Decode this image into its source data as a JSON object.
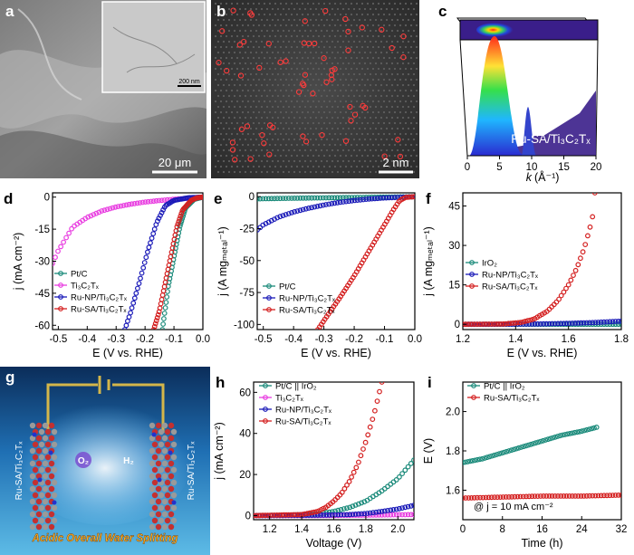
{
  "panels": {
    "a": {
      "label": "a",
      "scale_main": "20 μm",
      "scale_inset": "200 nm"
    },
    "b": {
      "label": "b",
      "scale": "2 nm"
    },
    "c": {
      "label": "c",
      "sample": "Ru-SA/Ti₃C₂Tₓ",
      "xlabel_k": "k",
      "xlabel_unit": "(Å⁻¹)",
      "xticks": [
        "0",
        "5",
        "10",
        "15",
        "20"
      ]
    },
    "d": {
      "label": "d",
      "ylabel": "j (mA cm⁻²)",
      "xlabel": "E (V vs. RHE)",
      "xticks": [
        "-0.5",
        "-0.4",
        "-0.3",
        "-0.2",
        "-0.1",
        "0.0"
      ],
      "yticks": [
        "0",
        "-15",
        "-30",
        "-45",
        "-60"
      ],
      "legend": [
        "Pt/C",
        "Ti₃C₂Tₓ",
        "Ru-NP/Ti₃C₂Tₓ",
        "Ru-SA/Ti₃C₂Tₓ"
      ]
    },
    "e": {
      "label": "e",
      "ylabel": "j (A mgₘₑₜₐₗ⁻¹)",
      "xlabel": "E (V vs. RHE)",
      "xticks": [
        "-0.5",
        "-0.4",
        "-0.3",
        "-0.2",
        "-0.1",
        "0.0"
      ],
      "yticks": [
        "0",
        "-25",
        "-50",
        "-75",
        "-100"
      ],
      "legend": [
        "Pt/C",
        "Ru-NP/Ti₃C₂Tₓ",
        "Ru-SA/Ti₃C₂Tₓ"
      ]
    },
    "f": {
      "label": "f",
      "ylabel": "j (A mgₘₑₜₐₗ⁻¹)",
      "xlabel": "E (V vs. RHE)",
      "xticks": [
        "1.2",
        "1.4",
        "1.6",
        "1.8"
      ],
      "yticks": [
        "0",
        "15",
        "30",
        "45"
      ],
      "legend": [
        "IrO₂",
        "Ru-NP/Ti₃C₂Tₓ",
        "Ru-SA/Ti₃C₂Tₓ"
      ]
    },
    "g": {
      "label": "g",
      "left_electrode": "Ru-SA/Ti₃C₂Tₓ",
      "right_electrode": "Ru-SA/Ti₃C₂Tₓ",
      "o2": "O₂",
      "h2": "H₂",
      "caption": "Acidic Overall Water Splitting"
    },
    "h": {
      "label": "h",
      "ylabel": "j (mA cm⁻²)",
      "xlabel": "Voltage (V)",
      "xticks": [
        "1.2",
        "1.4",
        "1.6",
        "1.8",
        "2.0"
      ],
      "yticks": [
        "0",
        "20",
        "40",
        "60"
      ],
      "legend": [
        "Pt/C || IrO₂",
        "Ti₃C₂Tₓ",
        "Ru-NP/Ti₃C₂Tₓ",
        "Ru-SA/Ti₃C₂Tₓ"
      ]
    },
    "i": {
      "label": "i",
      "ylabel": "E (V)",
      "xlabel": "Time (h)",
      "xticks": [
        "0",
        "8",
        "16",
        "24",
        "32"
      ],
      "yticks": [
        "1.6",
        "1.8",
        "2.0"
      ],
      "legend": [
        "Pt/C || IrO₂",
        "Ru-SA/Ti₃C₂Tₓ"
      ],
      "annotation": "@ j = 10 mA cm⁻²"
    }
  },
  "colors": {
    "ptc": "#1a8a7a",
    "ti3c2": "#e83de0",
    "runp": "#1a1ab8",
    "rusa": "#d42020",
    "iro2": "#1a8a7a"
  },
  "chart_data": [
    {
      "panel": "d",
      "type": "line",
      "xlabel": "E (V vs. RHE)",
      "ylabel": "j (mA cm-2)",
      "xlim": [
        -0.52,
        0.0
      ],
      "ylim": [
        -62,
        2
      ],
      "series": [
        {
          "name": "Pt/C",
          "x": [
            0.0,
            -0.03,
            -0.06,
            -0.08,
            -0.1,
            -0.12,
            -0.13,
            -0.14
          ],
          "y": [
            0,
            -1,
            -5,
            -14,
            -28,
            -42,
            -52,
            -62
          ]
        },
        {
          "name": "Ti3C2Tx",
          "x": [
            0.0,
            -0.05,
            -0.1,
            -0.15,
            -0.2,
            -0.25,
            -0.3,
            -0.35,
            -0.4,
            -0.45,
            -0.5,
            -0.52
          ],
          "y": [
            0,
            -0.5,
            -1,
            -1.6,
            -2.3,
            -3.3,
            -4.6,
            -6.5,
            -9.5,
            -14,
            -25,
            -31
          ]
        },
        {
          "name": "Ru-NP/Ti3C2Tx",
          "x": [
            0.0,
            -0.05,
            -0.1,
            -0.13,
            -0.16,
            -0.19,
            -0.22,
            -0.25,
            -0.27
          ],
          "y": [
            0,
            -0.3,
            -1.5,
            -4,
            -12,
            -25,
            -40,
            -54,
            -62
          ]
        },
        {
          "name": "Ru-SA/Ti3C2Tx",
          "x": [
            0.0,
            -0.02,
            -0.04,
            -0.07,
            -0.09,
            -0.11,
            -0.13,
            -0.15,
            -0.17
          ],
          "y": [
            0,
            -0.3,
            -1.5,
            -6,
            -14,
            -27,
            -40,
            -53,
            -62
          ]
        }
      ]
    },
    {
      "panel": "e",
      "type": "line",
      "xlabel": "E (V vs. RHE)",
      "ylabel": "j (A mg_metal-1)",
      "xlim": [
        -0.52,
        0.0
      ],
      "ylim": [
        -104,
        3
      ],
      "series": [
        {
          "name": "Pt/C",
          "x": [
            0.0,
            -0.1,
            -0.2,
            -0.3,
            -0.4,
            -0.5,
            -0.52
          ],
          "y": [
            0,
            -0.3,
            -0.6,
            -0.9,
            -1.2,
            -1.6,
            -1.8
          ]
        },
        {
          "name": "Ru-NP/Ti3C2Tx",
          "x": [
            0.0,
            -0.05,
            -0.1,
            -0.15,
            -0.2,
            -0.25,
            -0.3,
            -0.35,
            -0.4,
            -0.45,
            -0.5,
            -0.52
          ],
          "y": [
            0,
            -0.5,
            -1,
            -1.8,
            -3,
            -4.5,
            -6.5,
            -9,
            -12,
            -16,
            -22,
            -26
          ]
        },
        {
          "name": "Ru-SA/Ti3C2Tx",
          "x": [
            0.0,
            -0.03,
            -0.05,
            -0.07,
            -0.1,
            -0.15,
            -0.2,
            -0.25,
            -0.3,
            -0.32
          ],
          "y": [
            0,
            -0.5,
            -3,
            -10,
            -22,
            -42,
            -62,
            -80,
            -97,
            -104
          ]
        }
      ]
    },
    {
      "panel": "f",
      "type": "line",
      "xlabel": "E (V vs. RHE)",
      "ylabel": "j (A mg_metal-1)",
      "xlim": [
        1.2,
        1.8
      ],
      "ylim": [
        -2,
        50
      ],
      "series": [
        {
          "name": "IrO2",
          "x": [
            1.2,
            1.4,
            1.6,
            1.8
          ],
          "y": [
            0,
            0,
            0,
            0
          ]
        },
        {
          "name": "Ru-NP/Ti3C2Tx",
          "x": [
            1.2,
            1.3,
            1.4,
            1.5,
            1.6,
            1.7,
            1.8
          ],
          "y": [
            0,
            0,
            0.05,
            0.15,
            0.35,
            0.7,
            1.2
          ]
        },
        {
          "name": "Ru-SA/Ti3C2Tx",
          "x": [
            1.2,
            1.35,
            1.42,
            1.47,
            1.52,
            1.56,
            1.6,
            1.63,
            1.66,
            1.69,
            1.7
          ],
          "y": [
            0,
            0.1,
            0.7,
            2,
            5,
            9,
            15,
            21,
            29,
            40,
            50
          ]
        }
      ]
    },
    {
      "panel": "h",
      "type": "line",
      "xlabel": "Voltage (V)",
      "ylabel": "j (mA cm-2)",
      "xlim": [
        1.1,
        2.1
      ],
      "ylim": [
        -2,
        65
      ],
      "series": [
        {
          "name": "Pt/C || IrO2",
          "x": [
            1.1,
            1.3,
            1.5,
            1.6,
            1.7,
            1.8,
            1.9,
            2.0,
            2.1
          ],
          "y": [
            0,
            0.2,
            0.8,
            2,
            4,
            7,
            12,
            18,
            27
          ]
        },
        {
          "name": "Ti3C2Tx",
          "x": [
            1.1,
            1.5,
            1.8,
            2.1
          ],
          "y": [
            0,
            0,
            0.2,
            0.5
          ]
        },
        {
          "name": "Ru-NP/Ti3C2Tx",
          "x": [
            1.1,
            1.5,
            1.7,
            1.8,
            1.9,
            2.0,
            2.1
          ],
          "y": [
            0,
            0.2,
            0.5,
            1,
            2,
            3.2,
            5
          ]
        },
        {
          "name": "Ru-SA/Ti3C2Tx",
          "x": [
            1.1,
            1.4,
            1.5,
            1.55,
            1.6,
            1.65,
            1.7,
            1.75,
            1.8,
            1.85,
            1.9
          ],
          "y": [
            0,
            0.5,
            2,
            4,
            7,
            11,
            17,
            25,
            36,
            49,
            65
          ]
        }
      ]
    },
    {
      "panel": "i",
      "type": "line",
      "xlabel": "Time (h)",
      "ylabel": "E (V)",
      "xlim": [
        0,
        32
      ],
      "ylim": [
        1.45,
        2.15
      ],
      "series": [
        {
          "name": "Pt/C || IrO2",
          "x": [
            0,
            4,
            8,
            12,
            16,
            20,
            24,
            27
          ],
          "y": [
            1.74,
            1.76,
            1.79,
            1.82,
            1.85,
            1.88,
            1.9,
            1.92
          ]
        },
        {
          "name": "Ru-SA/Ti3C2Tx",
          "x": [
            0,
            8,
            16,
            24,
            32
          ],
          "y": [
            1.56,
            1.565,
            1.57,
            1.57,
            1.575
          ]
        }
      ]
    }
  ]
}
